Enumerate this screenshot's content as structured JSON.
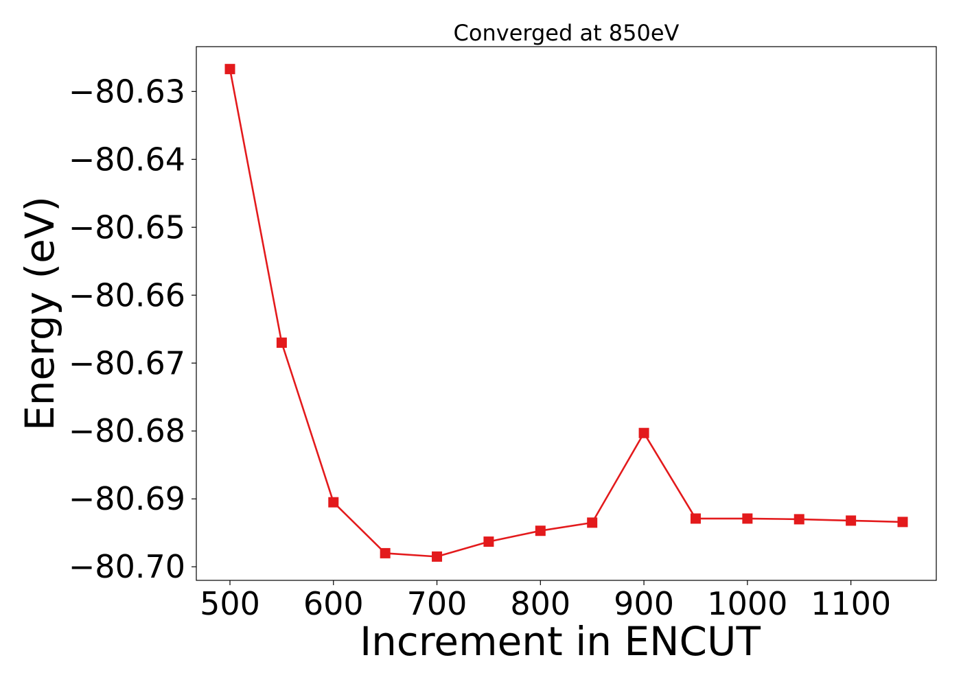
{
  "chart_data": {
    "type": "line",
    "title": "Converged at 850eV",
    "xlabel": "Increment in ENCUT",
    "ylabel": "Energy (eV)",
    "xlim": [
      467.5,
      1182.5
    ],
    "ylim": [
      -80.702,
      -80.6234
    ],
    "x_ticks": [
      500,
      600,
      700,
      800,
      900,
      1000,
      1100
    ],
    "x_tick_labels": [
      "500",
      "600",
      "700",
      "800",
      "900",
      "1000",
      "1100"
    ],
    "y_ticks": [
      -80.63,
      -80.64,
      -80.65,
      -80.66,
      -80.67,
      -80.68,
      -80.69,
      -80.7
    ],
    "y_tick_labels": [
      "−80.63",
      "−80.64",
      "−80.65",
      "−80.66",
      "−80.67",
      "−80.68",
      "−80.69",
      "−80.70"
    ],
    "grid": false,
    "series": [
      {
        "color": "#e31a1c",
        "marker": "square",
        "x": [
          500,
          550,
          600,
          650,
          700,
          750,
          800,
          850,
          900,
          950,
          1000,
          1050,
          1100,
          1150
        ],
        "y": [
          -80.6267,
          -80.667,
          -80.6905,
          -80.698,
          -80.6985,
          -80.6963,
          -80.6947,
          -80.6935,
          -80.6803,
          -80.6929,
          -80.6929,
          -80.693,
          -80.6932,
          -80.6934
        ]
      }
    ]
  }
}
